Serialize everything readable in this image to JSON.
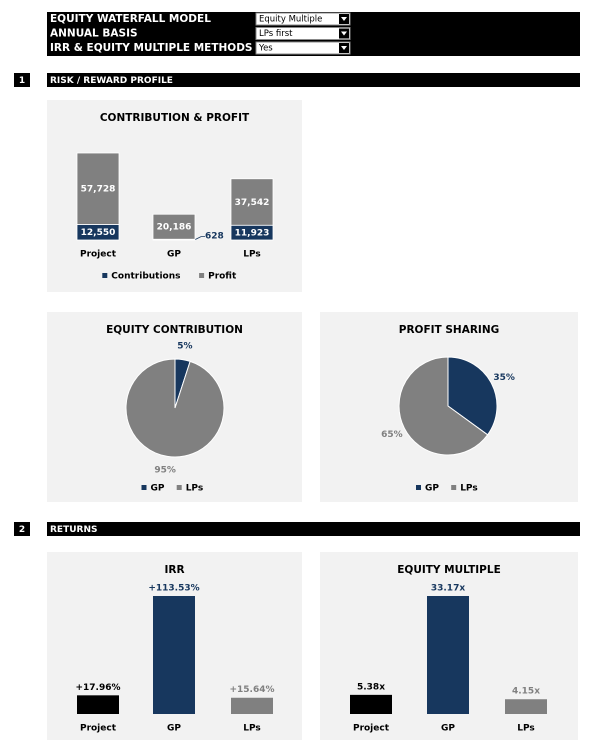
{
  "header": {
    "rows": [
      {
        "label": "EQUITY WATERFALL MODEL",
        "value": "Equity Multiple"
      },
      {
        "label": "ANNUAL BASIS",
        "value": "LPs first"
      },
      {
        "label": "IRR & EQUITY MULTIPLE METHODS",
        "value": "Yes"
      }
    ]
  },
  "sections": [
    {
      "number": "1",
      "title": "RISK / REWARD PROFILE"
    },
    {
      "number": "2",
      "title": "RETURNS"
    }
  ],
  "chart_data": [
    {
      "type": "bar",
      "stacked": true,
      "title": "CONTRIBUTION & PROFIT",
      "categories": [
        "Project",
        "GP",
        "LPs"
      ],
      "series": [
        {
          "name": "Contributions",
          "color": "#17375e",
          "values": [
            12550,
            628,
            11923
          ],
          "value_labels": [
            "12,550",
            "628",
            "11,923"
          ]
        },
        {
          "name": "Profit",
          "color": "#808080",
          "values": [
            57728,
            20186,
            37542
          ],
          "value_labels": [
            "57,728",
            "20,186",
            "37,542"
          ]
        }
      ]
    },
    {
      "type": "pie",
      "title": "EQUITY CONTRIBUTION",
      "categories": [
        "GP",
        "LPs"
      ],
      "values": [
        5,
        95
      ],
      "value_labels": [
        "5%",
        "95%"
      ],
      "colors": [
        "#17375e",
        "#808080"
      ]
    },
    {
      "type": "pie",
      "title": "PROFIT SHARING",
      "categories": [
        "GP",
        "LPs"
      ],
      "values": [
        35,
        65
      ],
      "value_labels": [
        "35%",
        "65%"
      ],
      "colors": [
        "#17375e",
        "#808080"
      ]
    },
    {
      "type": "bar",
      "title": "IRR",
      "categories": [
        "Project",
        "GP",
        "LPs"
      ],
      "values": [
        17.96,
        113.53,
        15.64
      ],
      "value_labels": [
        "+17.96%",
        "+113.53%",
        "+15.64%"
      ],
      "colors": [
        "#000000",
        "#17375e",
        "#808080"
      ]
    },
    {
      "type": "bar",
      "title": "EQUITY MULTIPLE",
      "categories": [
        "Project",
        "GP",
        "LPs"
      ],
      "values": [
        5.38,
        33.17,
        4.15
      ],
      "value_labels": [
        "5.38x",
        "33.17x",
        "4.15x"
      ],
      "colors": [
        "#000000",
        "#17375e",
        "#808080"
      ]
    }
  ]
}
